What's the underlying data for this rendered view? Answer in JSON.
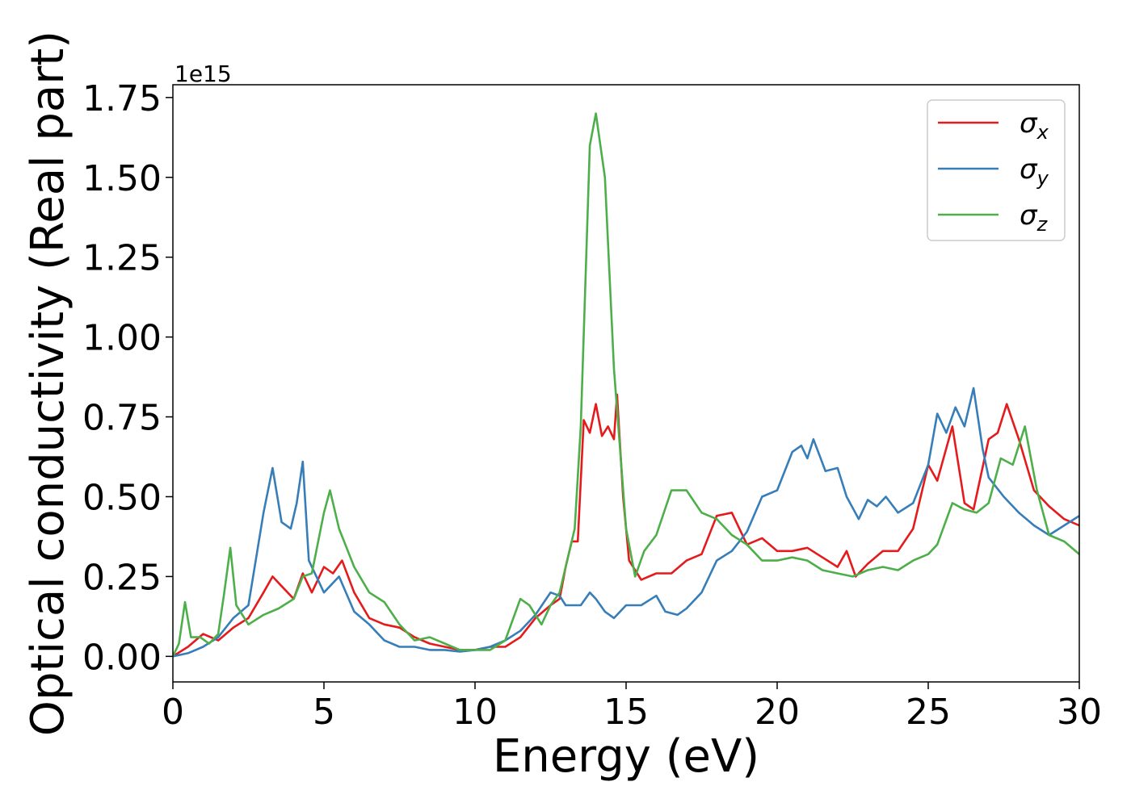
{
  "chart_data": {
    "type": "line",
    "xlabel": "Energy (eV)",
    "ylabel": "Optical conductivity (Real part)",
    "y_offset_label": "1e15",
    "xlim": [
      0,
      30
    ],
    "ylim": [
      -0.08,
      1.79
    ],
    "grid": false,
    "legend_placement": "top-right",
    "x_ticks": [
      0,
      5,
      10,
      15,
      20,
      25,
      30
    ],
    "x_tick_labels": [
      "0",
      "5",
      "10",
      "15",
      "20",
      "25",
      "30"
    ],
    "y_ticks": [
      0,
      0.25,
      0.5,
      0.75,
      1.0,
      1.25,
      1.5,
      1.75
    ],
    "y_tick_labels": [
      "0.00",
      "0.25",
      "0.50",
      "0.75",
      "1.00",
      "1.25",
      "1.50",
      "1.75"
    ],
    "series": [
      {
        "name": "σ",
        "subscript": "x",
        "color": "#e41a1c",
        "points": [
          [
            0,
            0
          ],
          [
            0.5,
            0.03
          ],
          [
            1,
            0.07
          ],
          [
            1.5,
            0.05
          ],
          [
            2,
            0.09
          ],
          [
            2.5,
            0.12
          ],
          [
            3,
            0.2
          ],
          [
            3.3,
            0.25
          ],
          [
            3.6,
            0.22
          ],
          [
            4,
            0.18
          ],
          [
            4.3,
            0.26
          ],
          [
            4.6,
            0.2
          ],
          [
            5,
            0.28
          ],
          [
            5.3,
            0.26
          ],
          [
            5.6,
            0.3
          ],
          [
            6,
            0.2
          ],
          [
            6.5,
            0.12
          ],
          [
            7,
            0.1
          ],
          [
            7.5,
            0.09
          ],
          [
            8,
            0.06
          ],
          [
            8.5,
            0.04
          ],
          [
            9,
            0.03
          ],
          [
            9.5,
            0.02
          ],
          [
            10,
            0.02
          ],
          [
            10.5,
            0.03
          ],
          [
            11,
            0.03
          ],
          [
            11.5,
            0.06
          ],
          [
            12,
            0.12
          ],
          [
            12.5,
            0.16
          ],
          [
            12.8,
            0.18
          ],
          [
            13,
            0.28
          ],
          [
            13.2,
            0.36
          ],
          [
            13.4,
            0.36
          ],
          [
            13.6,
            0.74
          ],
          [
            13.8,
            0.7
          ],
          [
            14,
            0.79
          ],
          [
            14.2,
            0.69
          ],
          [
            14.4,
            0.72
          ],
          [
            14.6,
            0.68
          ],
          [
            14.7,
            0.82
          ],
          [
            14.9,
            0.5
          ],
          [
            15.1,
            0.3
          ],
          [
            15.5,
            0.24
          ],
          [
            16,
            0.26
          ],
          [
            16.5,
            0.26
          ],
          [
            17,
            0.3
          ],
          [
            17.5,
            0.32
          ],
          [
            18,
            0.44
          ],
          [
            18.5,
            0.45
          ],
          [
            19,
            0.35
          ],
          [
            19.5,
            0.37
          ],
          [
            20,
            0.33
          ],
          [
            20.5,
            0.33
          ],
          [
            21,
            0.34
          ],
          [
            21.5,
            0.31
          ],
          [
            22,
            0.28
          ],
          [
            22.3,
            0.33
          ],
          [
            22.6,
            0.25
          ],
          [
            23,
            0.29
          ],
          [
            23.5,
            0.33
          ],
          [
            24,
            0.33
          ],
          [
            24.5,
            0.4
          ],
          [
            25,
            0.6
          ],
          [
            25.3,
            0.55
          ],
          [
            25.8,
            0.72
          ],
          [
            26.2,
            0.48
          ],
          [
            26.5,
            0.46
          ],
          [
            27,
            0.68
          ],
          [
            27.3,
            0.7
          ],
          [
            27.6,
            0.79
          ],
          [
            28,
            0.68
          ],
          [
            28.5,
            0.52
          ],
          [
            29,
            0.47
          ],
          [
            29.5,
            0.43
          ],
          [
            30,
            0.41
          ]
        ]
      },
      {
        "name": "σ",
        "subscript": "y",
        "color": "#377eb8",
        "points": [
          [
            0,
            0
          ],
          [
            0.5,
            0.01
          ],
          [
            1,
            0.03
          ],
          [
            1.5,
            0.06
          ],
          [
            2,
            0.12
          ],
          [
            2.5,
            0.16
          ],
          [
            3,
            0.45
          ],
          [
            3.3,
            0.59
          ],
          [
            3.6,
            0.42
          ],
          [
            3.9,
            0.4
          ],
          [
            4.1,
            0.48
          ],
          [
            4.3,
            0.61
          ],
          [
            4.5,
            0.3
          ],
          [
            5,
            0.2
          ],
          [
            5.5,
            0.25
          ],
          [
            6,
            0.14
          ],
          [
            6.5,
            0.1
          ],
          [
            7,
            0.05
          ],
          [
            7.5,
            0.03
          ],
          [
            8,
            0.03
          ],
          [
            8.5,
            0.02
          ],
          [
            9,
            0.02
          ],
          [
            9.5,
            0.015
          ],
          [
            10,
            0.02
          ],
          [
            10.5,
            0.03
          ],
          [
            11,
            0.05
          ],
          [
            11.5,
            0.08
          ],
          [
            12,
            0.13
          ],
          [
            12.5,
            0.2
          ],
          [
            12.8,
            0.19
          ],
          [
            13,
            0.16
          ],
          [
            13.5,
            0.16
          ],
          [
            13.8,
            0.2
          ],
          [
            14,
            0.18
          ],
          [
            14.3,
            0.14
          ],
          [
            14.6,
            0.12
          ],
          [
            15,
            0.16
          ],
          [
            15.5,
            0.16
          ],
          [
            16,
            0.19
          ],
          [
            16.3,
            0.14
          ],
          [
            16.7,
            0.13
          ],
          [
            17,
            0.15
          ],
          [
            17.5,
            0.2
          ],
          [
            18,
            0.3
          ],
          [
            18.5,
            0.33
          ],
          [
            19,
            0.39
          ],
          [
            19.5,
            0.5
          ],
          [
            20,
            0.52
          ],
          [
            20.5,
            0.64
          ],
          [
            20.8,
            0.66
          ],
          [
            21,
            0.62
          ],
          [
            21.2,
            0.68
          ],
          [
            21.6,
            0.58
          ],
          [
            22,
            0.59
          ],
          [
            22.3,
            0.5
          ],
          [
            22.7,
            0.43
          ],
          [
            23,
            0.49
          ],
          [
            23.3,
            0.47
          ],
          [
            23.6,
            0.5
          ],
          [
            24,
            0.45
          ],
          [
            24.5,
            0.48
          ],
          [
            25,
            0.6
          ],
          [
            25.3,
            0.76
          ],
          [
            25.6,
            0.7
          ],
          [
            25.9,
            0.78
          ],
          [
            26.2,
            0.72
          ],
          [
            26.5,
            0.84
          ],
          [
            26.8,
            0.65
          ],
          [
            27,
            0.56
          ],
          [
            27.5,
            0.5
          ],
          [
            28,
            0.45
          ],
          [
            28.5,
            0.41
          ],
          [
            29,
            0.38
          ],
          [
            29.5,
            0.41
          ],
          [
            30,
            0.44
          ]
        ]
      },
      {
        "name": "σ",
        "subscript": "z",
        "color": "#4daf4a",
        "points": [
          [
            0,
            0
          ],
          [
            0.2,
            0.04
          ],
          [
            0.4,
            0.17
          ],
          [
            0.6,
            0.06
          ],
          [
            0.9,
            0.06
          ],
          [
            1.2,
            0.04
          ],
          [
            1.5,
            0.07
          ],
          [
            1.7,
            0.2
          ],
          [
            1.9,
            0.34
          ],
          [
            2.1,
            0.16
          ],
          [
            2.5,
            0.1
          ],
          [
            3,
            0.13
          ],
          [
            3.5,
            0.15
          ],
          [
            4,
            0.18
          ],
          [
            4.3,
            0.25
          ],
          [
            4.6,
            0.26
          ],
          [
            5,
            0.45
          ],
          [
            5.2,
            0.52
          ],
          [
            5.5,
            0.4
          ],
          [
            6,
            0.28
          ],
          [
            6.5,
            0.2
          ],
          [
            7,
            0.17
          ],
          [
            7.5,
            0.1
          ],
          [
            8,
            0.05
          ],
          [
            8.5,
            0.06
          ],
          [
            9,
            0.04
          ],
          [
            9.5,
            0.02
          ],
          [
            10,
            0.02
          ],
          [
            10.5,
            0.02
          ],
          [
            11,
            0.05
          ],
          [
            11.5,
            0.18
          ],
          [
            11.8,
            0.16
          ],
          [
            12.2,
            0.1
          ],
          [
            12.5,
            0.16
          ],
          [
            12.8,
            0.2
          ],
          [
            13,
            0.28
          ],
          [
            13.3,
            0.4
          ],
          [
            13.5,
            0.72
          ],
          [
            13.8,
            1.6
          ],
          [
            14,
            1.7
          ],
          [
            14.3,
            1.5
          ],
          [
            14.6,
            0.9
          ],
          [
            15,
            0.4
          ],
          [
            15.3,
            0.25
          ],
          [
            15.6,
            0.33
          ],
          [
            16,
            0.38
          ],
          [
            16.5,
            0.52
          ],
          [
            17,
            0.52
          ],
          [
            17.5,
            0.45
          ],
          [
            18,
            0.43
          ],
          [
            18.5,
            0.38
          ],
          [
            19,
            0.35
          ],
          [
            19.5,
            0.3
          ],
          [
            20,
            0.3
          ],
          [
            20.5,
            0.31
          ],
          [
            21,
            0.3
          ],
          [
            21.5,
            0.27
          ],
          [
            22,
            0.26
          ],
          [
            22.5,
            0.25
          ],
          [
            23,
            0.27
          ],
          [
            23.5,
            0.28
          ],
          [
            24,
            0.27
          ],
          [
            24.5,
            0.3
          ],
          [
            25,
            0.32
          ],
          [
            25.3,
            0.35
          ],
          [
            25.8,
            0.48
          ],
          [
            26.2,
            0.46
          ],
          [
            26.6,
            0.45
          ],
          [
            27,
            0.48
          ],
          [
            27.4,
            0.62
          ],
          [
            27.8,
            0.6
          ],
          [
            28.2,
            0.72
          ],
          [
            28.6,
            0.52
          ],
          [
            29,
            0.38
          ],
          [
            29.5,
            0.36
          ],
          [
            30,
            0.32
          ]
        ]
      }
    ]
  }
}
